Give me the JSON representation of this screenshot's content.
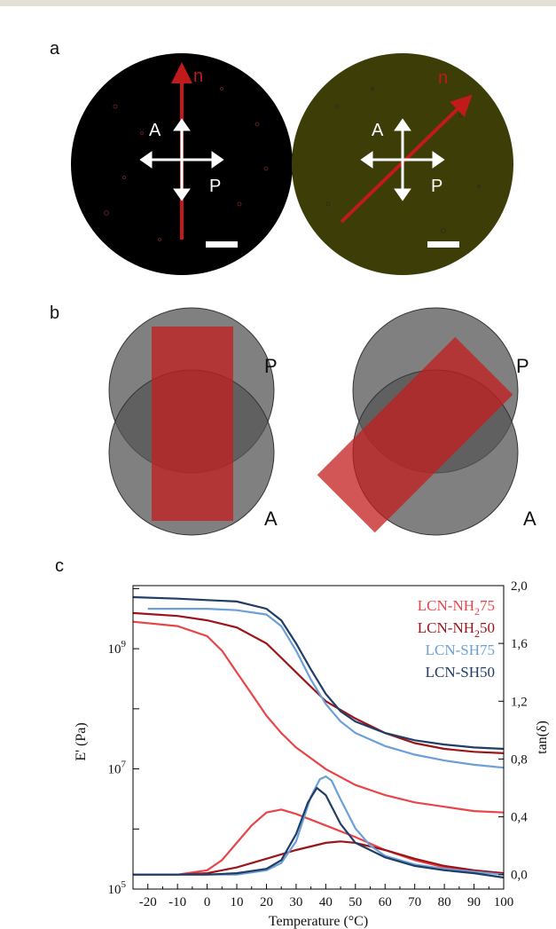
{
  "panel_labels": {
    "a": "a",
    "b": "b",
    "c": "c"
  },
  "panel_a": {
    "left": {
      "director": "n",
      "analyzer": "A",
      "polarizer": "P",
      "background": "#000000",
      "director_angle_deg": 90
    },
    "right": {
      "director": "n",
      "analyzer": "A",
      "polarizer": "P",
      "background": "#3d3d08",
      "director_angle_deg": 45
    }
  },
  "panel_b": {
    "left": {
      "polarizer": "P",
      "analyzer": "A",
      "rect_angle_deg": 0
    },
    "right": {
      "polarizer": "P",
      "analyzer": "A",
      "rect_angle_deg": 45
    }
  },
  "chart_data": {
    "type": "line",
    "xlabel": "Temperature (°C)",
    "ylabel_left": "E' (Pa)",
    "ylabel_right": "tan(δ)",
    "x_ticks": [
      "-20",
      "-10",
      "0",
      "10",
      "20",
      "30",
      "40",
      "50",
      "60",
      "70",
      "80",
      "90",
      "100"
    ],
    "y_left_ticks": [
      "10",
      "10",
      "10"
    ],
    "y_left_exponents": [
      "9",
      "7",
      "5"
    ],
    "y_right_ticks": [
      "2,0",
      "1,6",
      "1,2",
      "0,8",
      "0,4",
      "0,0"
    ],
    "xlim": [
      -25,
      100
    ],
    "ylim_right": [
      -0.1,
      2.0
    ],
    "legend_position": "top-right",
    "legend": [
      {
        "prefix": "LCN-NH",
        "sub": "2",
        "suffix": "75",
        "color": "#e8454a"
      },
      {
        "prefix": "LCN-NH",
        "sub": "2",
        "suffix": "50",
        "color": "#9b1418"
      },
      {
        "prefix": "LCN-SH75",
        "sub": "",
        "suffix": "",
        "color": "#6b9fd6"
      },
      {
        "prefix": "LCN-SH50",
        "sub": "",
        "suffix": "",
        "color": "#1f3d66"
      }
    ],
    "series": [
      {
        "name": "LCN-NH2 75",
        "color": "#e8454a",
        "storage_modulus": {
          "x": [
            -25,
            -10,
            0,
            5,
            10,
            15,
            20,
            25,
            30,
            40,
            50,
            60,
            70,
            80,
            90,
            100
          ],
          "y": [
            1.75,
            1.72,
            1.65,
            1.55,
            1.4,
            1.25,
            1.1,
            0.98,
            0.88,
            0.73,
            0.62,
            0.55,
            0.5,
            0.47,
            0.44,
            0.43
          ]
        },
        "tan_delta": {
          "x": [
            -25,
            -10,
            0,
            5,
            10,
            15,
            20,
            25,
            30,
            35,
            40,
            50,
            60,
            70,
            80,
            90,
            100
          ],
          "y": [
            0.0,
            0.0,
            0.03,
            0.1,
            0.22,
            0.34,
            0.43,
            0.45,
            0.42,
            0.38,
            0.34,
            0.26,
            0.17,
            0.1,
            0.05,
            0.02,
            0.01
          ]
        }
      },
      {
        "name": "LCN-NH2 50",
        "color": "#9b1418",
        "storage_modulus": {
          "x": [
            -25,
            -10,
            0,
            10,
            20,
            25,
            30,
            35,
            40,
            50,
            60,
            70,
            80,
            90,
            100
          ],
          "y": [
            1.81,
            1.79,
            1.76,
            1.71,
            1.6,
            1.5,
            1.4,
            1.3,
            1.2,
            1.08,
            0.98,
            0.91,
            0.87,
            0.85,
            0.84
          ]
        },
        "tan_delta": {
          "x": [
            -25,
            -10,
            0,
            10,
            20,
            30,
            40,
            45,
            50,
            60,
            70,
            80,
            90,
            100
          ],
          "y": [
            0.0,
            0.0,
            0.01,
            0.05,
            0.11,
            0.17,
            0.22,
            0.23,
            0.22,
            0.17,
            0.11,
            0.06,
            0.03,
            0.01
          ]
        }
      },
      {
        "name": "LCN-SH75",
        "color": "#6b9fd6",
        "storage_modulus": {
          "x": [
            -20,
            -10,
            0,
            10,
            20,
            25,
            30,
            35,
            40,
            45,
            50,
            60,
            70,
            80,
            90,
            100
          ],
          "y": [
            1.84,
            1.84,
            1.84,
            1.83,
            1.8,
            1.72,
            1.55,
            1.35,
            1.18,
            1.06,
            0.98,
            0.89,
            0.83,
            0.79,
            0.76,
            0.74
          ]
        },
        "tan_delta": {
          "x": [
            -25,
            -10,
            0,
            10,
            20,
            25,
            30,
            35,
            38,
            40,
            42,
            45,
            50,
            55,
            60,
            70,
            80,
            90,
            100
          ],
          "y": [
            0.0,
            0.0,
            0.0,
            0.0,
            0.03,
            0.08,
            0.23,
            0.54,
            0.66,
            0.68,
            0.65,
            0.52,
            0.32,
            0.2,
            0.13,
            0.07,
            0.04,
            0.02,
            0.0
          ]
        }
      },
      {
        "name": "LCN-SH50",
        "color": "#1f3d66",
        "storage_modulus": {
          "x": [
            -25,
            -10,
            0,
            10,
            20,
            25,
            30,
            35,
            40,
            45,
            50,
            60,
            70,
            80,
            90,
            100
          ],
          "y": [
            1.92,
            1.91,
            1.9,
            1.89,
            1.84,
            1.76,
            1.6,
            1.42,
            1.25,
            1.13,
            1.06,
            0.98,
            0.93,
            0.9,
            0.88,
            0.87
          ]
        },
        "tan_delta": {
          "x": [
            -25,
            -10,
            0,
            10,
            20,
            25,
            30,
            34,
            37,
            40,
            45,
            50,
            60,
            70,
            80,
            90,
            100
          ],
          "y": [
            0.0,
            0.0,
            0.0,
            0.01,
            0.04,
            0.1,
            0.28,
            0.5,
            0.6,
            0.55,
            0.35,
            0.22,
            0.12,
            0.06,
            0.03,
            0.01,
            -0.02
          ]
        }
      }
    ]
  }
}
